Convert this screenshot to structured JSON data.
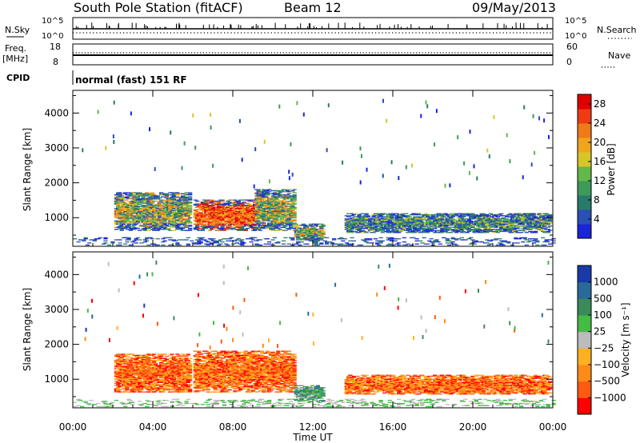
{
  "header": {
    "station": "South Pole Station (fitACF)",
    "beam": "Beam 12",
    "date": "09/May/2013"
  },
  "top_panels": {
    "nsky_label": "N.Sky",
    "nsearch_label": "N.Search",
    "noise_ticks_left": [
      "10^5",
      "10^0"
    ],
    "noise_ticks_right": [
      "10^5",
      "10^0"
    ],
    "freq_label": "Freq.",
    "freq_unit": "[MHz]",
    "freq_ticks": [
      "18",
      "8"
    ],
    "nave_label": "Nave",
    "nave_ticks": [
      "60",
      "0"
    ],
    "cpid_label": "CPID",
    "cpid_text": "normal (fast) 151 RF"
  },
  "colors": {
    "power": [
      "#1a24d8",
      "#2a4fb5",
      "#2a7a6c",
      "#3d9a5a",
      "#62b84a",
      "#d8c52a",
      "#f0a51c",
      "#f07a18",
      "#ef3b14",
      "#e00000"
    ],
    "velocity": [
      "#ff0000",
      "#ff5a10",
      "#ff8a18",
      "#ffb020",
      "#bcbcbc",
      "#44bb44",
      "#3a8a5a",
      "#2a6a9a",
      "#1a3aa8"
    ]
  },
  "chart_data": [
    {
      "type": "heatmap",
      "title": "",
      "xlabel": "",
      "ylabel": "Slant Range [km]",
      "x_ticks": [
        "00:00",
        "04:00",
        "08:00",
        "12:00",
        "16:00",
        "20:00",
        "00:00"
      ],
      "xlim_hours": [
        0,
        24
      ],
      "ylim_km": [
        180,
        4650
      ],
      "y_ticks": [
        1000,
        2000,
        3000,
        4000
      ],
      "colorbar": {
        "label": "Power [dB]",
        "ticks": [
          4,
          8,
          12,
          16,
          20,
          24,
          28
        ],
        "range": [
          0,
          30
        ]
      },
      "regions": [
        {
          "t_start": 2.0,
          "t_end": 5.8,
          "r_low": 600,
          "r_high": 1700,
          "level": "mid"
        },
        {
          "t_start": 6.0,
          "t_end": 9.0,
          "r_low": 600,
          "r_high": 1500,
          "level": "high"
        },
        {
          "t_start": 9.0,
          "t_end": 11.0,
          "r_low": 600,
          "r_high": 1800,
          "level": "mid"
        },
        {
          "t_start": 11.0,
          "t_end": 12.5,
          "r_low": 350,
          "r_high": 800,
          "level": "mid"
        },
        {
          "t_start": 13.5,
          "t_end": 23.8,
          "r_low": 550,
          "r_high": 1100,
          "level": "low"
        }
      ]
    },
    {
      "type": "heatmap",
      "title": "",
      "xlabel": "Time UT",
      "ylabel": "Slant Range [km]",
      "x_ticks": [
        "00:00",
        "04:00",
        "08:00",
        "12:00",
        "16:00",
        "20:00",
        "00:00"
      ],
      "xlim_hours": [
        0,
        24
      ],
      "ylim_km": [
        180,
        4650
      ],
      "y_ticks": [
        1000,
        2000,
        3000,
        4000
      ],
      "colorbar": {
        "label": "Velocity [m s⁻¹]",
        "ticks": [
          "1000",
          "500",
          "100",
          "25",
          "−25",
          "−100",
          "−500",
          "−1000"
        ]
      },
      "regions": [
        {
          "t_start": 2.0,
          "t_end": 5.8,
          "r_low": 600,
          "r_high": 1700,
          "level": "negative"
        },
        {
          "t_start": 6.0,
          "t_end": 11.0,
          "r_low": 600,
          "r_high": 1800,
          "level": "negative"
        },
        {
          "t_start": 11.0,
          "t_end": 12.5,
          "r_low": 350,
          "r_high": 800,
          "level": "positive"
        },
        {
          "t_start": 13.5,
          "t_end": 23.8,
          "r_low": 550,
          "r_high": 1100,
          "level": "negative"
        }
      ]
    }
  ]
}
